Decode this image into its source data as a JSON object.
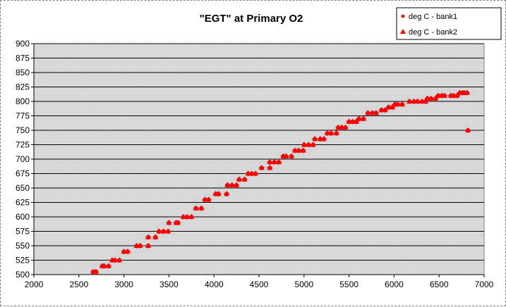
{
  "chart_data": {
    "type": "scatter",
    "title": "\"EGT\" at Primary O2",
    "xlabel": "",
    "ylabel": "",
    "xlim": [
      2000,
      7000
    ],
    "ylim": [
      500,
      900
    ],
    "x_ticks": [
      "2000",
      "2500",
      "3000",
      "3500",
      "4000",
      "4500",
      "5000",
      "5500",
      "6000",
      "6500",
      "7000"
    ],
    "y_ticks": [
      "900",
      "875",
      "850",
      "825",
      "800",
      "775",
      "750",
      "725",
      "700",
      "675",
      "650",
      "625",
      "600",
      "575",
      "550",
      "525",
      "500"
    ],
    "grid": true,
    "legend_position": "top-right",
    "colors": {
      "series": "#ff0000",
      "plot_background": "#c0c0c0",
      "gridline": "#000000"
    },
    "series": [
      {
        "name": "deg C - bank1",
        "marker": "diamond",
        "points": [
          [
            2660,
            505
          ],
          [
            2690,
            505
          ],
          [
            2760,
            515
          ],
          [
            2780,
            515
          ],
          [
            2830,
            515
          ],
          [
            2870,
            525
          ],
          [
            2900,
            525
          ],
          [
            2950,
            525
          ],
          [
            3000,
            540
          ],
          [
            3040,
            540
          ],
          [
            3140,
            550
          ],
          [
            3180,
            550
          ],
          [
            3270,
            550
          ],
          [
            3270,
            565
          ],
          [
            3350,
            565
          ],
          [
            3390,
            575
          ],
          [
            3440,
            575
          ],
          [
            3490,
            575
          ],
          [
            3500,
            590
          ],
          [
            3580,
            590
          ],
          [
            3600,
            590
          ],
          [
            3660,
            600
          ],
          [
            3700,
            600
          ],
          [
            3750,
            600
          ],
          [
            3800,
            615
          ],
          [
            3860,
            615
          ],
          [
            3900,
            630
          ],
          [
            3940,
            630
          ],
          [
            4020,
            640
          ],
          [
            4050,
            640
          ],
          [
            4140,
            640
          ],
          [
            4150,
            655
          ],
          [
            4200,
            655
          ],
          [
            4250,
            655
          ],
          [
            4280,
            665
          ],
          [
            4340,
            665
          ],
          [
            4380,
            675
          ],
          [
            4420,
            675
          ],
          [
            4460,
            675
          ],
          [
            4530,
            685
          ],
          [
            4620,
            685
          ],
          [
            4620,
            695
          ],
          [
            4670,
            695
          ],
          [
            4720,
            695
          ],
          [
            4770,
            705
          ],
          [
            4800,
            705
          ],
          [
            4860,
            705
          ],
          [
            4900,
            715
          ],
          [
            4940,
            715
          ],
          [
            4990,
            715
          ],
          [
            5000,
            725
          ],
          [
            5050,
            725
          ],
          [
            5100,
            725
          ],
          [
            5120,
            735
          ],
          [
            5180,
            735
          ],
          [
            5220,
            735
          ],
          [
            5260,
            745
          ],
          [
            5300,
            745
          ],
          [
            5360,
            745
          ],
          [
            5380,
            755
          ],
          [
            5420,
            755
          ],
          [
            5460,
            755
          ],
          [
            5500,
            765
          ],
          [
            5540,
            765
          ],
          [
            5580,
            765
          ],
          [
            5610,
            770
          ],
          [
            5660,
            770
          ],
          [
            5710,
            780
          ],
          [
            5760,
            780
          ],
          [
            5800,
            780
          ],
          [
            5860,
            785
          ],
          [
            5900,
            785
          ],
          [
            5940,
            790
          ],
          [
            5980,
            790
          ],
          [
            6010,
            795
          ],
          [
            6040,
            795
          ],
          [
            6090,
            795
          ],
          [
            6170,
            800
          ],
          [
            6220,
            800
          ],
          [
            6260,
            800
          ],
          [
            6310,
            800
          ],
          [
            6350,
            800
          ],
          [
            6370,
            805
          ],
          [
            6410,
            805
          ],
          [
            6460,
            805
          ],
          [
            6490,
            810
          ],
          [
            6530,
            810
          ],
          [
            6560,
            810
          ],
          [
            6630,
            810
          ],
          [
            6660,
            810
          ],
          [
            6700,
            810
          ],
          [
            6730,
            815
          ],
          [
            6760,
            815
          ],
          [
            6780,
            815
          ],
          [
            6810,
            815
          ],
          [
            6820,
            750
          ]
        ]
      },
      {
        "name": "deg C - bank2",
        "marker": "triangle",
        "points": [
          [
            2660,
            505
          ],
          [
            2690,
            505
          ],
          [
            2760,
            515
          ],
          [
            2780,
            515
          ],
          [
            2830,
            515
          ],
          [
            2870,
            525
          ],
          [
            2900,
            525
          ],
          [
            2950,
            525
          ],
          [
            3000,
            540
          ],
          [
            3040,
            540
          ],
          [
            3140,
            550
          ],
          [
            3180,
            550
          ],
          [
            3270,
            550
          ],
          [
            3270,
            565
          ],
          [
            3350,
            565
          ],
          [
            3390,
            575
          ],
          [
            3440,
            575
          ],
          [
            3490,
            575
          ],
          [
            3500,
            590
          ],
          [
            3580,
            590
          ],
          [
            3600,
            590
          ],
          [
            3660,
            600
          ],
          [
            3700,
            600
          ],
          [
            3750,
            600
          ],
          [
            3800,
            615
          ],
          [
            3860,
            615
          ],
          [
            3900,
            630
          ],
          [
            3940,
            630
          ],
          [
            4020,
            640
          ],
          [
            4050,
            640
          ],
          [
            4140,
            640
          ],
          [
            4150,
            655
          ],
          [
            4200,
            655
          ],
          [
            4250,
            655
          ],
          [
            4280,
            665
          ],
          [
            4340,
            665
          ],
          [
            4380,
            675
          ],
          [
            4420,
            675
          ],
          [
            4460,
            675
          ],
          [
            4530,
            685
          ],
          [
            4620,
            685
          ],
          [
            4620,
            695
          ],
          [
            4670,
            695
          ],
          [
            4720,
            695
          ],
          [
            4770,
            705
          ],
          [
            4800,
            705
          ],
          [
            4860,
            705
          ],
          [
            4900,
            715
          ],
          [
            4940,
            715
          ],
          [
            4990,
            715
          ],
          [
            5000,
            725
          ],
          [
            5050,
            725
          ],
          [
            5100,
            725
          ],
          [
            5120,
            735
          ],
          [
            5180,
            735
          ],
          [
            5220,
            735
          ],
          [
            5260,
            745
          ],
          [
            5300,
            745
          ],
          [
            5360,
            745
          ],
          [
            5380,
            755
          ],
          [
            5420,
            755
          ],
          [
            5460,
            755
          ],
          [
            5500,
            765
          ],
          [
            5540,
            765
          ],
          [
            5580,
            765
          ],
          [
            5610,
            770
          ],
          [
            5660,
            770
          ],
          [
            5710,
            780
          ],
          [
            5760,
            780
          ],
          [
            5800,
            780
          ],
          [
            5860,
            785
          ],
          [
            5900,
            785
          ],
          [
            5940,
            790
          ],
          [
            5980,
            790
          ],
          [
            6010,
            795
          ],
          [
            6040,
            795
          ],
          [
            6090,
            795
          ],
          [
            6170,
            800
          ],
          [
            6220,
            800
          ],
          [
            6260,
            800
          ],
          [
            6310,
            800
          ],
          [
            6350,
            800
          ],
          [
            6370,
            805
          ],
          [
            6410,
            805
          ],
          [
            6460,
            805
          ],
          [
            6490,
            810
          ],
          [
            6530,
            810
          ],
          [
            6560,
            810
          ],
          [
            6630,
            810
          ],
          [
            6660,
            810
          ],
          [
            6700,
            810
          ],
          [
            6730,
            815
          ],
          [
            6760,
            815
          ],
          [
            6780,
            815
          ],
          [
            6810,
            815
          ],
          [
            6820,
            750
          ]
        ]
      }
    ]
  }
}
